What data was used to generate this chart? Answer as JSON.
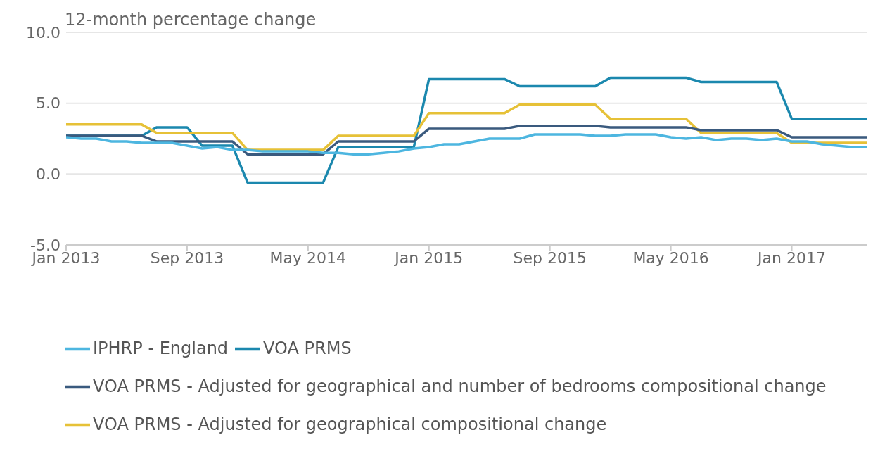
{
  "chart_data": {
    "type": "line",
    "ylabel": "12-month percentage change",
    "x": [
      "2013-01",
      "2013-02",
      "2013-03",
      "2013-04",
      "2013-05",
      "2013-06",
      "2013-07",
      "2013-08",
      "2013-09",
      "2013-10",
      "2013-11",
      "2013-12",
      "2014-01",
      "2014-02",
      "2014-03",
      "2014-04",
      "2014-05",
      "2014-06",
      "2014-07",
      "2014-08",
      "2014-09",
      "2014-10",
      "2014-11",
      "2014-12",
      "2015-01",
      "2015-02",
      "2015-03",
      "2015-04",
      "2015-05",
      "2015-06",
      "2015-07",
      "2015-08",
      "2015-09",
      "2015-10",
      "2015-11",
      "2015-12",
      "2016-01",
      "2016-02",
      "2016-03",
      "2016-04",
      "2016-05",
      "2016-06",
      "2016-07",
      "2016-08",
      "2016-09",
      "2016-10",
      "2016-11",
      "2016-12",
      "2017-01",
      "2017-02",
      "2017-03",
      "2017-04",
      "2017-05",
      "2017-06"
    ],
    "series": [
      {
        "name": "VOA PRMS",
        "color": "#1b88ae",
        "values": [
          2.7,
          2.7,
          2.7,
          2.7,
          2.7,
          2.7,
          3.3,
          3.3,
          3.3,
          2.0,
          2.0,
          2.0,
          -0.6,
          -0.6,
          -0.6,
          -0.6,
          -0.6,
          -0.6,
          1.9,
          1.9,
          1.9,
          1.9,
          1.9,
          1.9,
          6.7,
          6.7,
          6.7,
          6.7,
          6.7,
          6.7,
          6.2,
          6.2,
          6.2,
          6.2,
          6.2,
          6.2,
          6.8,
          6.8,
          6.8,
          6.8,
          6.8,
          6.8,
          6.5,
          6.5,
          6.5,
          6.5,
          6.5,
          6.5,
          3.9,
          3.9,
          3.9,
          3.9,
          3.9,
          3.9
        ]
      },
      {
        "name": "VOA PRMS - Adjusted for geographical compositional change",
        "color": "#e6c137",
        "values": [
          3.5,
          3.5,
          3.5,
          3.5,
          3.5,
          3.5,
          2.9,
          2.9,
          2.9,
          2.9,
          2.9,
          2.9,
          1.7,
          1.7,
          1.7,
          1.7,
          1.7,
          1.7,
          2.7,
          2.7,
          2.7,
          2.7,
          2.7,
          2.7,
          4.3,
          4.3,
          4.3,
          4.3,
          4.3,
          4.3,
          4.9,
          4.9,
          4.9,
          4.9,
          4.9,
          4.9,
          3.9,
          3.9,
          3.9,
          3.9,
          3.9,
          3.9,
          2.9,
          2.9,
          2.9,
          2.9,
          2.9,
          2.9,
          2.2,
          2.2,
          2.2,
          2.2,
          2.2,
          2.2
        ]
      },
      {
        "name": "VOA PRMS - Adjusted for geographical and number of bedrooms compositional change",
        "color": "#3a5a7e",
        "values": [
          2.7,
          2.7,
          2.7,
          2.7,
          2.7,
          2.7,
          2.3,
          2.3,
          2.3,
          2.3,
          2.3,
          2.3,
          1.4,
          1.4,
          1.4,
          1.4,
          1.4,
          1.4,
          2.3,
          2.3,
          2.3,
          2.3,
          2.3,
          2.3,
          3.2,
          3.2,
          3.2,
          3.2,
          3.2,
          3.2,
          3.4,
          3.4,
          3.4,
          3.4,
          3.4,
          3.4,
          3.3,
          3.3,
          3.3,
          3.3,
          3.3,
          3.3,
          3.1,
          3.1,
          3.1,
          3.1,
          3.1,
          3.1,
          2.6,
          2.6,
          2.6,
          2.6,
          2.6,
          2.6
        ]
      },
      {
        "name": "IPHRP - England",
        "color": "#4db6e0",
        "values": [
          2.6,
          2.5,
          2.5,
          2.3,
          2.3,
          2.2,
          2.2,
          2.2,
          2.0,
          1.8,
          1.9,
          1.7,
          1.7,
          1.6,
          1.6,
          1.6,
          1.6,
          1.5,
          1.5,
          1.4,
          1.4,
          1.5,
          1.6,
          1.8,
          1.9,
          2.1,
          2.1,
          2.3,
          2.5,
          2.5,
          2.5,
          2.8,
          2.8,
          2.8,
          2.8,
          2.7,
          2.7,
          2.8,
          2.8,
          2.8,
          2.6,
          2.5,
          2.6,
          2.4,
          2.5,
          2.5,
          2.4,
          2.5,
          2.3,
          2.3,
          2.1,
          2.0,
          1.9,
          1.9
        ]
      }
    ],
    "xlim": [
      "2013-01",
      "2017-06"
    ],
    "xticks": [
      {
        "value": "2013-01",
        "label": "Jan 2013"
      },
      {
        "value": "2013-09",
        "label": "Sep 2013"
      },
      {
        "value": "2014-05",
        "label": "May 2014"
      },
      {
        "value": "2015-01",
        "label": "Jan 2015"
      },
      {
        "value": "2015-09",
        "label": "Sep 2015"
      },
      {
        "value": "2016-05",
        "label": "May 2016"
      },
      {
        "value": "2017-01",
        "label": "Jan 2017"
      }
    ],
    "ylim": [
      -5,
      10
    ],
    "yticks": [
      {
        "value": -5,
        "label": "-5.0"
      },
      {
        "value": 0,
        "label": "0.0"
      },
      {
        "value": 5,
        "label": "5.0"
      },
      {
        "value": 10,
        "label": "10.0"
      }
    ],
    "grid": "y",
    "legend": "bottom",
    "marker": "none",
    "line_style": "solid"
  }
}
